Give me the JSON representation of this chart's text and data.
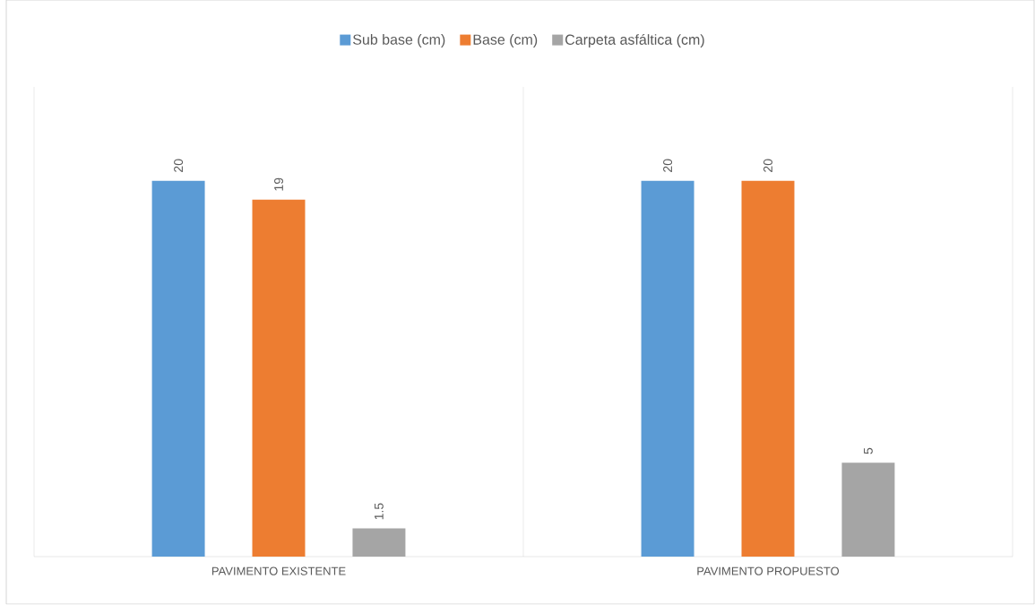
{
  "chart_data": {
    "type": "bar",
    "categories": [
      "PAVIMENTO EXISTENTE",
      "PAVIMENTO PROPUESTO"
    ],
    "series": [
      {
        "name": "Sub base (cm)",
        "color": "#5b9bd5",
        "values": [
          20,
          20
        ]
      },
      {
        "name": "Base (cm)",
        "color": "#ed7d31",
        "values": [
          19,
          20
        ]
      },
      {
        "name": "Carpeta asfáltica (cm)",
        "color": "#a5a5a5",
        "values": [
          1.5,
          5
        ]
      }
    ],
    "data_labels": true,
    "legend": "top",
    "grid": "x"
  }
}
